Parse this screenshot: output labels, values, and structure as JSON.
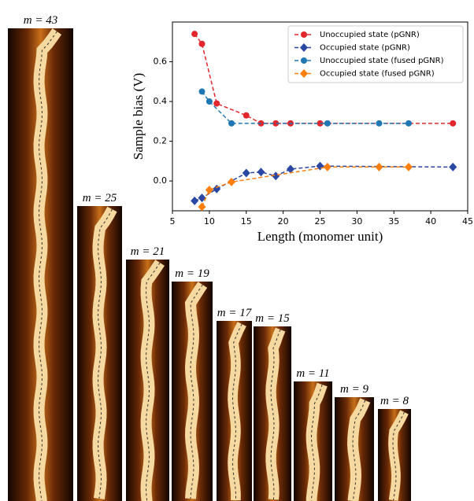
{
  "chart_data": {
    "type": "line",
    "xlabel": "Length (monomer unit)",
    "ylabel": "Sample bias (V)",
    "xlim": [
      5,
      45
    ],
    "xticks": [
      5,
      10,
      15,
      20,
      25,
      30,
      35,
      40,
      45
    ],
    "ylim": [
      -0.15,
      0.8
    ],
    "yticks": [
      {
        "value": 0,
        "label": "0.0"
      },
      0.2,
      0.4,
      0.6
    ],
    "legend": "upper right",
    "series": [
      {
        "name": "Unoccupied state (pGNR)",
        "color": "#e3262b",
        "marker": "circle",
        "x": [
          8,
          9,
          11,
          15,
          17,
          19,
          21,
          25,
          43
        ],
        "values": [
          0.74,
          0.69,
          0.39,
          0.33,
          0.29,
          0.29,
          0.29,
          0.29,
          0.29
        ]
      },
      {
        "name": "Occupied state (pGNR)",
        "color": "#2a48a3",
        "marker": "diamond",
        "x": [
          8,
          9,
          11,
          15,
          17,
          19,
          21,
          25,
          43
        ],
        "values": [
          -0.1,
          -0.085,
          -0.04,
          0.04,
          0.045,
          0.025,
          0.06,
          0.075,
          0.07
        ]
      },
      {
        "name": "Unoccupied state (fused pGNR)",
        "color": "#1f77b4",
        "marker": "circle",
        "x": [
          9,
          10,
          13,
          26,
          33,
          37
        ],
        "values": [
          0.45,
          0.4,
          0.29,
          0.29,
          0.29,
          0.29
        ]
      },
      {
        "name": "Occupied state (fused pGNR)",
        "color": "#ff7f0e",
        "marker": "diamond",
        "x": [
          9,
          10,
          13,
          26,
          33,
          37
        ],
        "values": [
          -0.13,
          -0.045,
          -0.005,
          0.07,
          0.07,
          0.07
        ]
      }
    ]
  },
  "images": [
    {
      "label": "m = 43"
    },
    {
      "label": "m = 25"
    },
    {
      "label": "m = 21"
    },
    {
      "label": "m = 19"
    },
    {
      "label": "m = 17"
    },
    {
      "label": "m = 15"
    },
    {
      "label": "m = 11"
    },
    {
      "label": "m = 9"
    },
    {
      "label": "m = 8"
    }
  ]
}
